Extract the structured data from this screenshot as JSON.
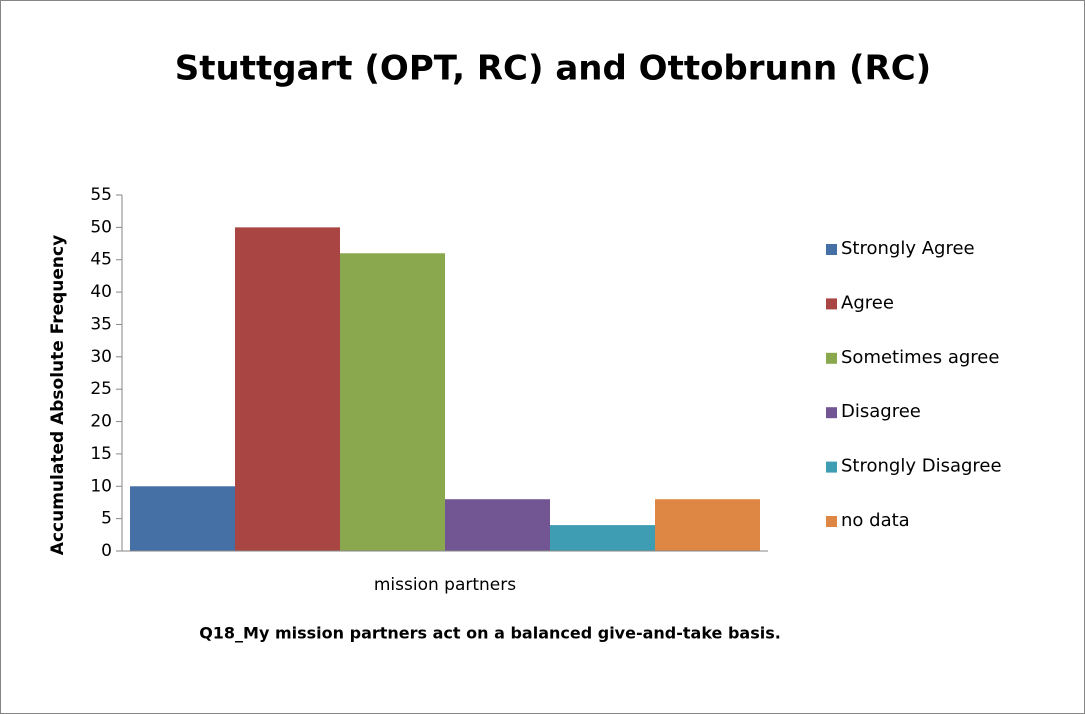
{
  "chart_data": {
    "type": "bar",
    "title": "Stuttgart (OPT, RC) and Ottobrunn (RC)",
    "y_label": "Accumulated Absolute Frequency",
    "x_label": "Q18_My mission partners act on a balanced give-and-take basis.",
    "categories": [
      "mission partners"
    ],
    "series": [
      {
        "name": "Strongly Agree",
        "color": "#4470a6",
        "values": [
          10
        ]
      },
      {
        "name": "Agree",
        "color": "#a94542",
        "values": [
          50
        ]
      },
      {
        "name": "Sometimes agree",
        "color": "#8aa94e",
        "values": [
          46
        ]
      },
      {
        "name": "Disagree",
        "color": "#715693",
        "values": [
          8
        ]
      },
      {
        "name": "Strongly Disagree",
        "color": "#3f9db3",
        "values": [
          4
        ]
      },
      {
        "name": "no data",
        "color": "#de8643",
        "values": [
          8
        ]
      }
    ],
    "ylim": [
      0,
      55
    ],
    "yticks": [
      0,
      5,
      10,
      15,
      20,
      25,
      30,
      35,
      40,
      45,
      50,
      55
    ],
    "grid": false,
    "legend": "right"
  }
}
